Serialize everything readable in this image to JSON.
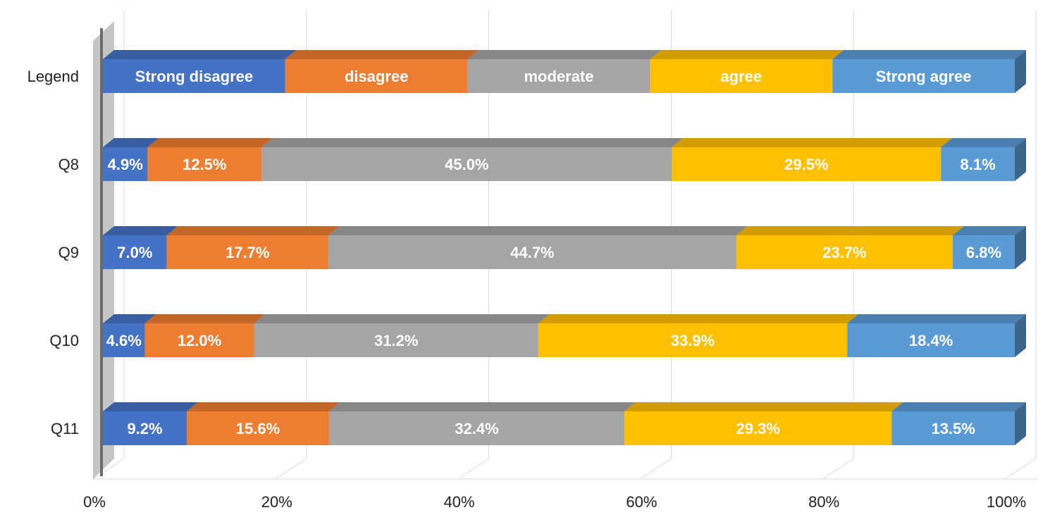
{
  "chart_data": {
    "type": "bar",
    "orientation": "horizontal",
    "stacked": true,
    "percent_stacked": true,
    "legend_placement": "top row (drawn as a bar)",
    "legend_row_label": "Legend",
    "categories": [
      "Q8",
      "Q9",
      "Q10",
      "Q11"
    ],
    "series": [
      {
        "name": "Strong disagree",
        "color": "#4472C4",
        "values": [
          4.9,
          7.0,
          4.6,
          9.2
        ]
      },
      {
        "name": "disagree",
        "color": "#ED7D31",
        "values": [
          12.5,
          17.7,
          12.0,
          15.6
        ]
      },
      {
        "name": "moderate",
        "color": "#A5A5A5",
        "values": [
          45.0,
          44.7,
          31.2,
          32.4
        ]
      },
      {
        "name": "agree",
        "color": "#FFC000",
        "values": [
          29.5,
          23.7,
          33.9,
          29.3
        ]
      },
      {
        "name": "Strong agree",
        "color": "#5B9BD5",
        "values": [
          8.1,
          6.8,
          18.4,
          13.5
        ]
      }
    ],
    "data_labels": [
      [
        "4.9%",
        "7.0%",
        "4.6%",
        "9.2%"
      ],
      [
        "12.5%",
        "17.7%",
        "12.0%",
        "15.6%"
      ],
      [
        "45.0%",
        "44.7%",
        "31.2%",
        "32.4%"
      ],
      [
        "29.5%",
        "23.7%",
        "33.9%",
        "29.3%"
      ],
      [
        "8.1%",
        "6.8%",
        "18.4%",
        "13.5%"
      ]
    ],
    "xlim": [
      0,
      100
    ],
    "x_ticks": [
      0,
      20,
      40,
      60,
      80,
      100
    ],
    "x_tick_labels": [
      "0%",
      "20%",
      "40%",
      "60%",
      "80%",
      "100%"
    ],
    "grid": true,
    "style": "3d"
  }
}
